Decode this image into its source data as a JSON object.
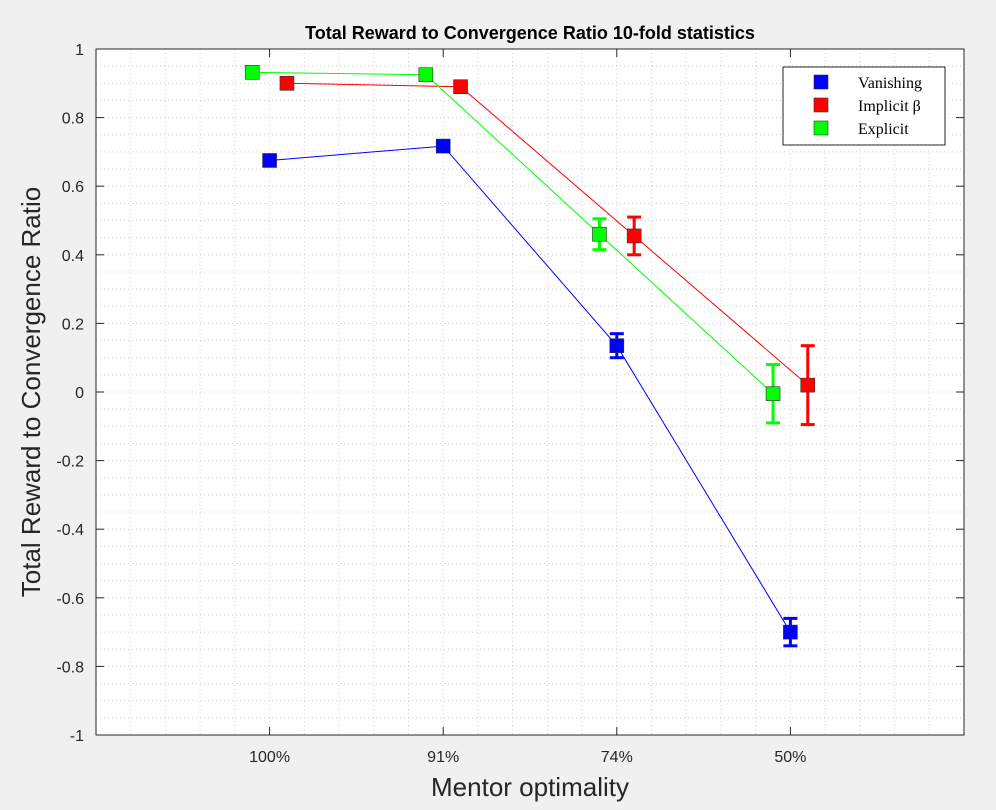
{
  "chart_data": {
    "type": "line",
    "title": "Total Reward to Convergence Ratio 10-fold statistics",
    "xlabel": "Mentor optimality",
    "ylabel": "Total Reward to Convergence Ratio",
    "categories": [
      "100%",
      "91%",
      "74%",
      "50%"
    ],
    "ylim": [
      -1,
      1
    ],
    "yticks": [
      "1",
      "0.8",
      "0.6",
      "0.4",
      "0.2",
      "0",
      "-0.2",
      "-0.4",
      "-0.6",
      "-0.8",
      "-1"
    ],
    "grid": "minor dotted",
    "legend_position": "top-right",
    "series": [
      {
        "name": "Vanishing",
        "color": "#0000ff",
        "offset": 0,
        "values": [
          0.675,
          0.717,
          0.135,
          -0.7
        ],
        "errors": [
          0.0,
          0.0,
          0.035,
          0.04
        ]
      },
      {
        "name": "Implicit β",
        "color": "#ff0000",
        "offset": 0.1,
        "values": [
          0.9,
          0.89,
          0.455,
          0.02
        ],
        "errors": [
          0.0,
          0.0,
          0.055,
          0.115
        ]
      },
      {
        "name": "Explicit",
        "color": "#00ff00",
        "offset": -0.1,
        "values": [
          0.932,
          0.925,
          0.46,
          -0.005
        ],
        "errors": [
          0.0,
          0.0,
          0.045,
          0.085
        ]
      }
    ]
  }
}
